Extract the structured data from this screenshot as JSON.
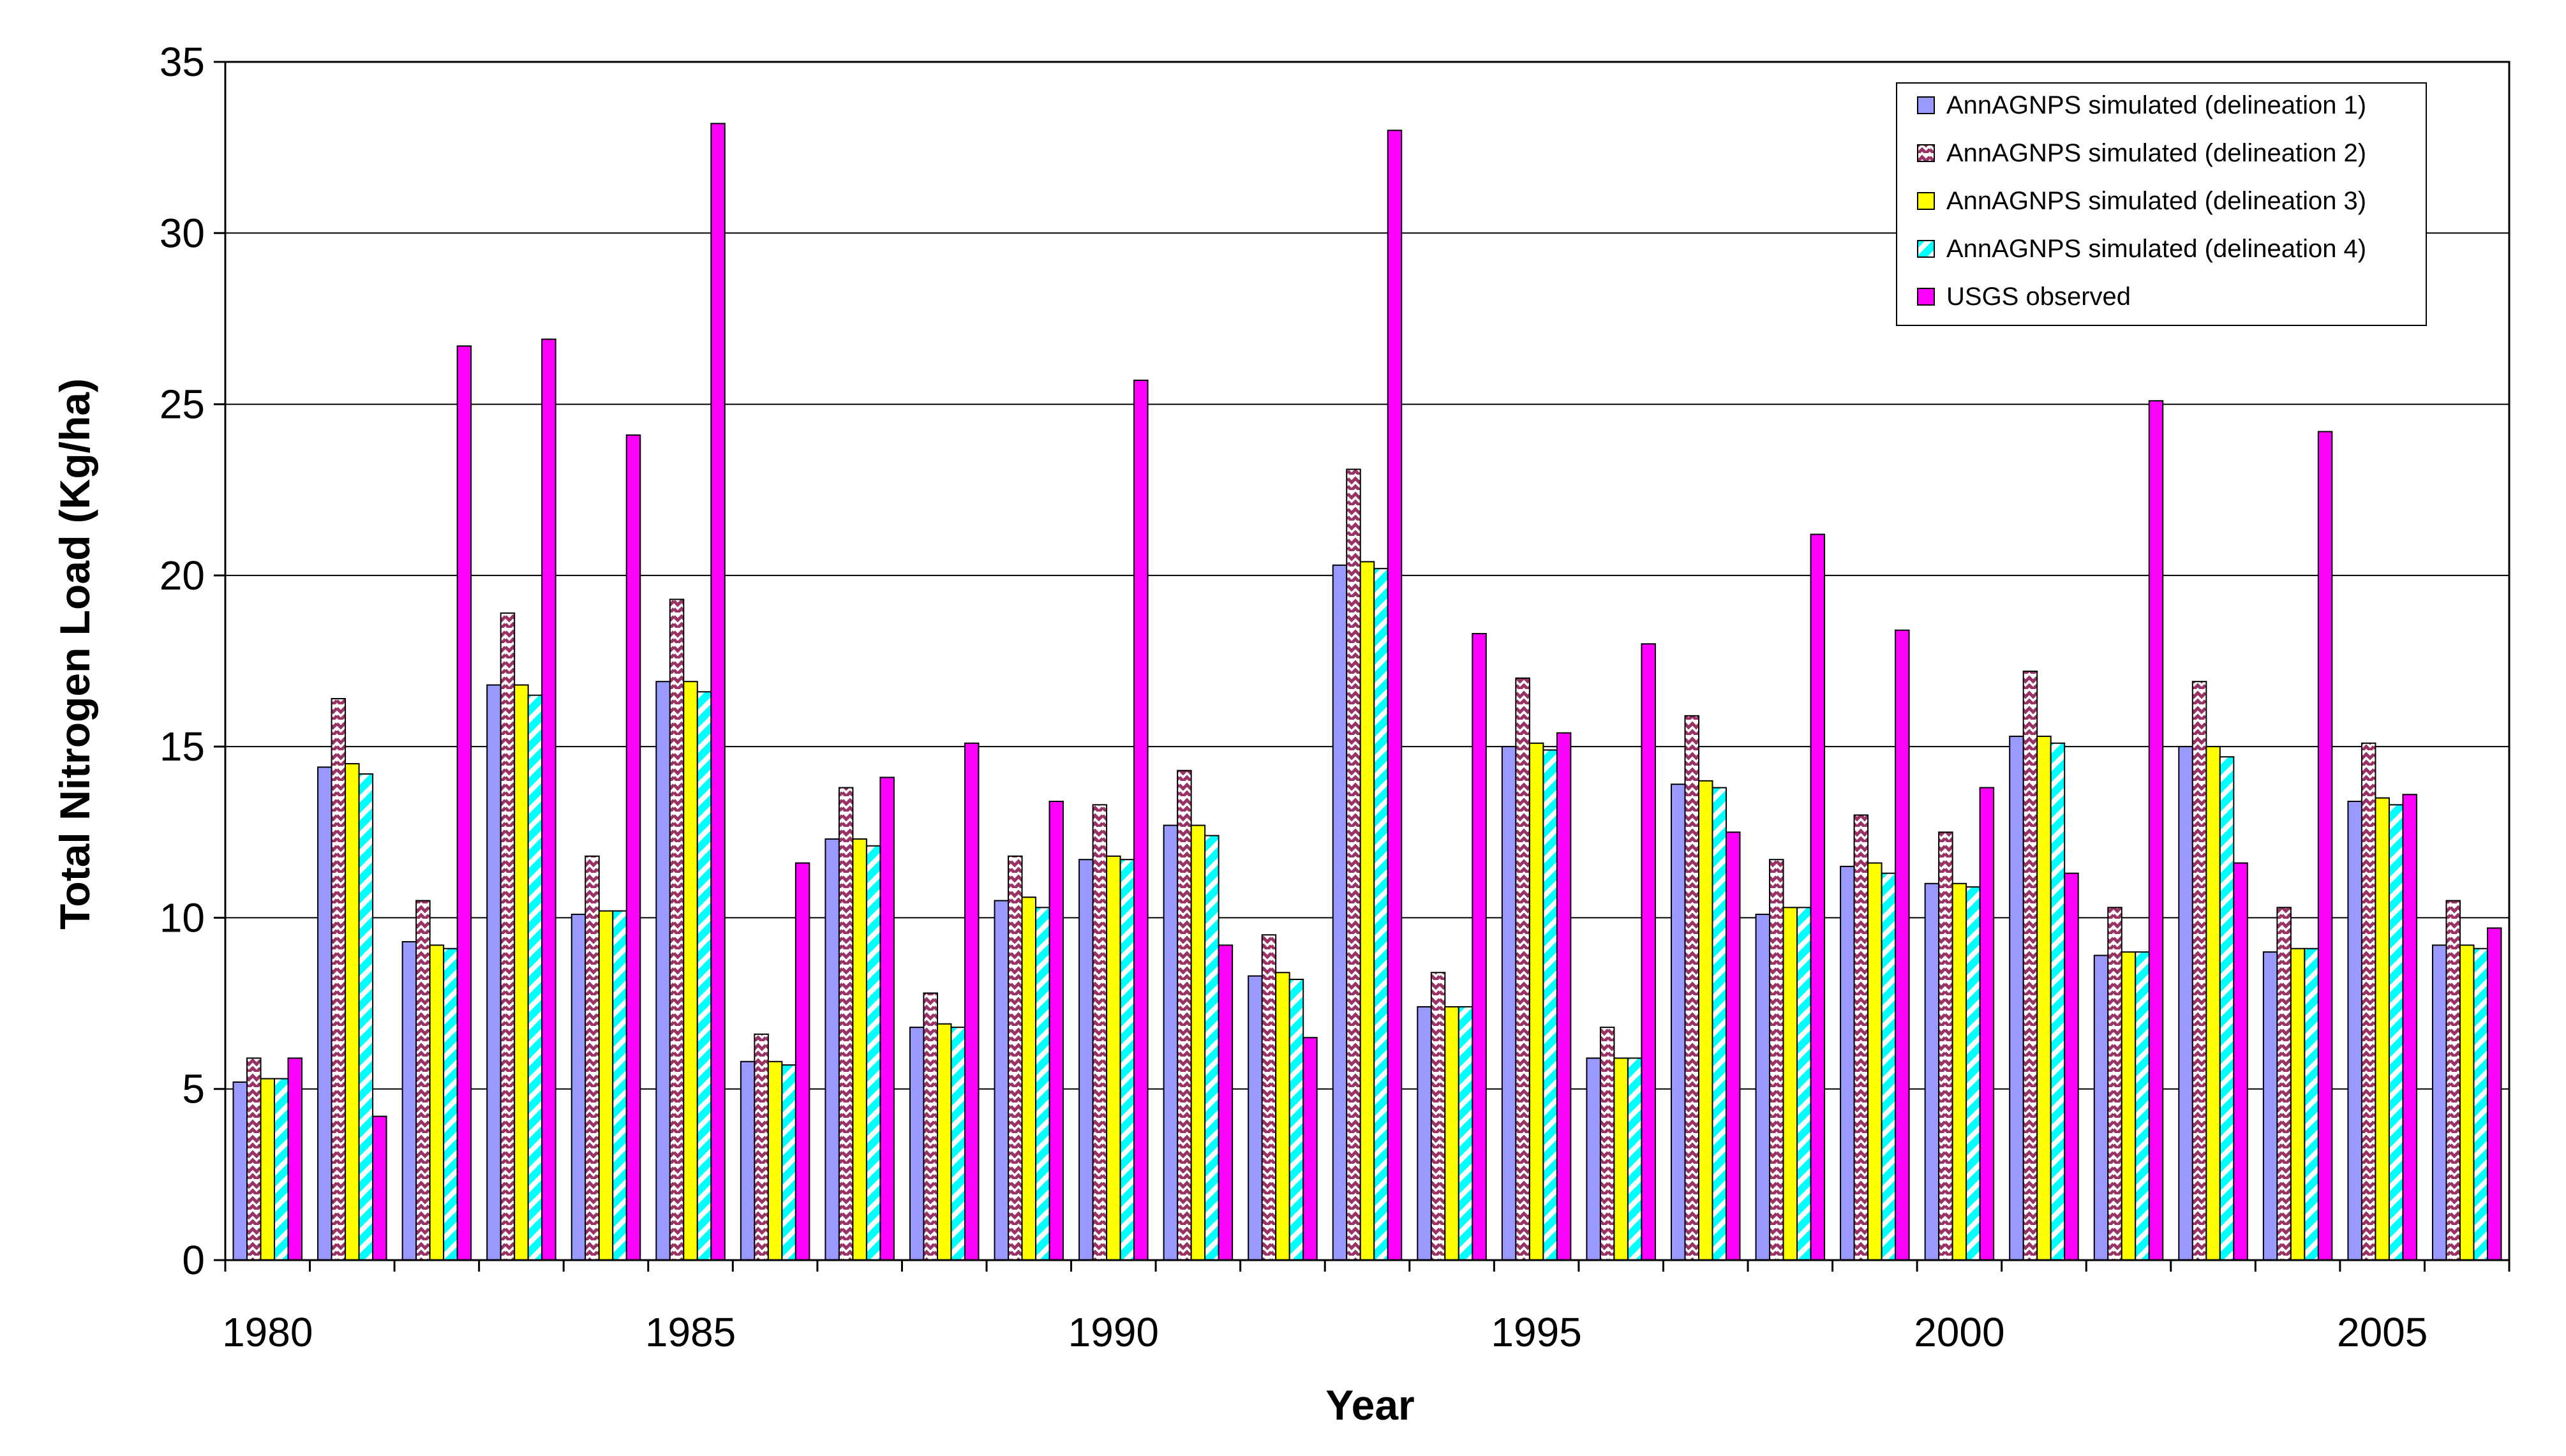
{
  "chart_data": {
    "type": "bar",
    "xlabel": "Year",
    "ylabel": "Total Nitrogen Load (Kg/ha)",
    "ylim": [
      0,
      35
    ],
    "yticks": [
      0,
      5,
      10,
      15,
      20,
      25,
      30,
      35
    ],
    "xtick_labels": [
      "1980",
      "1985",
      "1990",
      "1995",
      "2000",
      "2005"
    ],
    "categories": [
      "1980",
      "1981",
      "1982",
      "1983",
      "1984",
      "1985",
      "1986",
      "1987",
      "1988",
      "1989",
      "1990",
      "1991",
      "1992",
      "1993",
      "1994",
      "1995",
      "1996",
      "1997",
      "1998",
      "1999",
      "2000",
      "2001",
      "2002",
      "2003",
      "2004",
      "2005",
      "2006"
    ],
    "grid": true,
    "legend_position": "top-right",
    "series": [
      {
        "name": "AnnAGNPS simulated (delineation 1)",
        "color": "#9999ff",
        "pattern": "solid",
        "values": [
          5.2,
          14.4,
          9.3,
          16.8,
          10.1,
          16.9,
          5.8,
          12.3,
          6.8,
          10.5,
          11.7,
          12.7,
          8.3,
          20.3,
          7.4,
          15.0,
          5.9,
          13.9,
          10.1,
          11.5,
          11.0,
          15.3,
          8.9,
          15.0,
          9.0,
          13.4,
          9.2
        ]
      },
      {
        "name": "AnnAGNPS simulated (delineation 2)",
        "color": "#993366",
        "pattern": "zigzag",
        "values": [
          5.9,
          16.4,
          10.5,
          18.9,
          11.8,
          19.3,
          6.6,
          13.8,
          7.8,
          11.8,
          13.3,
          14.3,
          9.5,
          23.1,
          8.4,
          17.0,
          6.8,
          15.9,
          11.7,
          13.0,
          12.5,
          17.2,
          10.3,
          16.9,
          10.3,
          15.1,
          10.5
        ]
      },
      {
        "name": "AnnAGNPS simulated (delineation 3)",
        "color": "#ffff00",
        "pattern": "solid",
        "values": [
          5.3,
          14.5,
          9.2,
          16.8,
          10.2,
          16.9,
          5.8,
          12.3,
          6.9,
          10.6,
          11.8,
          12.7,
          8.4,
          20.4,
          7.4,
          15.1,
          5.9,
          14.0,
          10.3,
          11.6,
          11.0,
          15.3,
          9.0,
          15.0,
          9.1,
          13.5,
          9.2
        ]
      },
      {
        "name": "AnnAGNPS simulated (delineation 4)",
        "color": "#00ffff",
        "pattern": "diagonal",
        "values": [
          5.3,
          14.2,
          9.1,
          16.5,
          10.2,
          16.6,
          5.7,
          12.1,
          6.8,
          10.3,
          11.7,
          12.4,
          8.2,
          20.2,
          7.4,
          14.9,
          5.9,
          13.8,
          10.3,
          11.3,
          10.9,
          15.1,
          9.0,
          14.7,
          9.1,
          13.3,
          9.1
        ]
      },
      {
        "name": "USGS observed",
        "color": "#ff00ff",
        "pattern": "solid",
        "values": [
          5.9,
          4.2,
          26.7,
          26.9,
          24.1,
          33.2,
          11.6,
          14.1,
          15.1,
          13.4,
          25.7,
          9.2,
          6.5,
          33.0,
          18.3,
          15.4,
          18.0,
          12.5,
          21.2,
          18.4,
          13.8,
          11.3,
          25.1,
          11.6,
          24.2,
          13.6,
          9.7
        ]
      }
    ]
  }
}
